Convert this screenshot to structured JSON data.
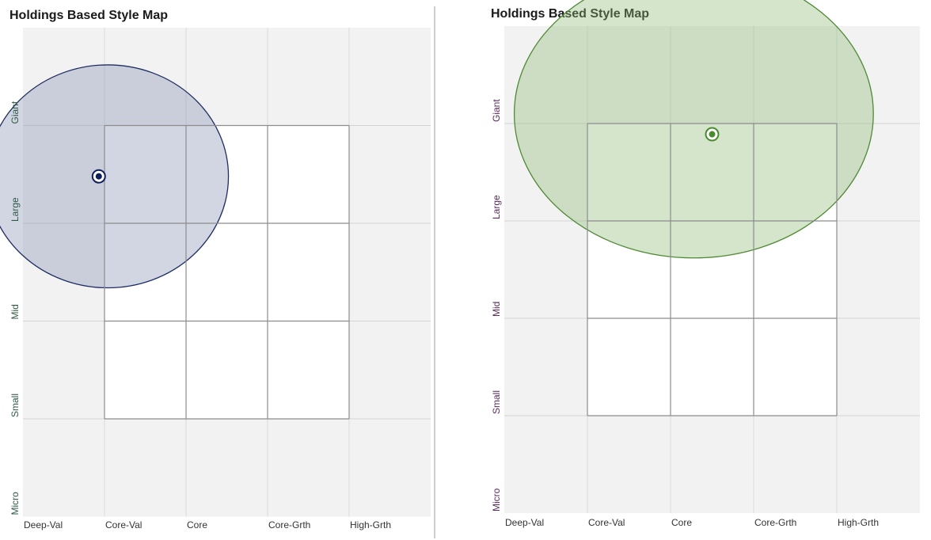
{
  "chart_data": [
    {
      "type": "scatter",
      "title": "Holdings Based Style Map",
      "x_categories": [
        "Deep-Val",
        "Core-Val",
        "Core",
        "Core-Grth",
        "High-Grth"
      ],
      "y_categories": [
        "Micro",
        "Small",
        "Mid",
        "Large",
        "Giant"
      ],
      "xlim": [
        0,
        5
      ],
      "ylim": [
        0,
        5
      ],
      "style_box": {
        "x": [
          1,
          4
        ],
        "y": [
          1,
          4
        ]
      },
      "point": {
        "x": 0.93,
        "y": 3.48
      },
      "ellipse": {
        "cx": 1.04,
        "cy": 3.48,
        "rx": 1.48,
        "ry": 1.14
      },
      "colors": {
        "fill": "#8a93b5",
        "stroke": "#1f2d63",
        "point": "#0f1f5c",
        "y_label": "#2e5a43"
      }
    },
    {
      "type": "scatter",
      "title": "Holdings Based Style Map",
      "x_categories": [
        "Deep-Val",
        "Core-Val",
        "Core",
        "Core-Grth",
        "High-Grth"
      ],
      "y_categories": [
        "Micro",
        "Small",
        "Mid",
        "Large",
        "Giant"
      ],
      "xlim": [
        0,
        5
      ],
      "ylim": [
        0,
        5
      ],
      "style_box": {
        "x": [
          1,
          4
        ],
        "y": [
          1,
          4
        ]
      },
      "point": {
        "x": 2.5,
        "y": 3.89
      },
      "ellipse": {
        "cx": 2.28,
        "cy": 4.1,
        "rx": 2.16,
        "ry": 1.48
      },
      "colors": {
        "fill": "#8fbb78",
        "stroke": "#4f8a35",
        "point": "#4a8a2e",
        "y_label": "#5a2a5e"
      }
    }
  ]
}
